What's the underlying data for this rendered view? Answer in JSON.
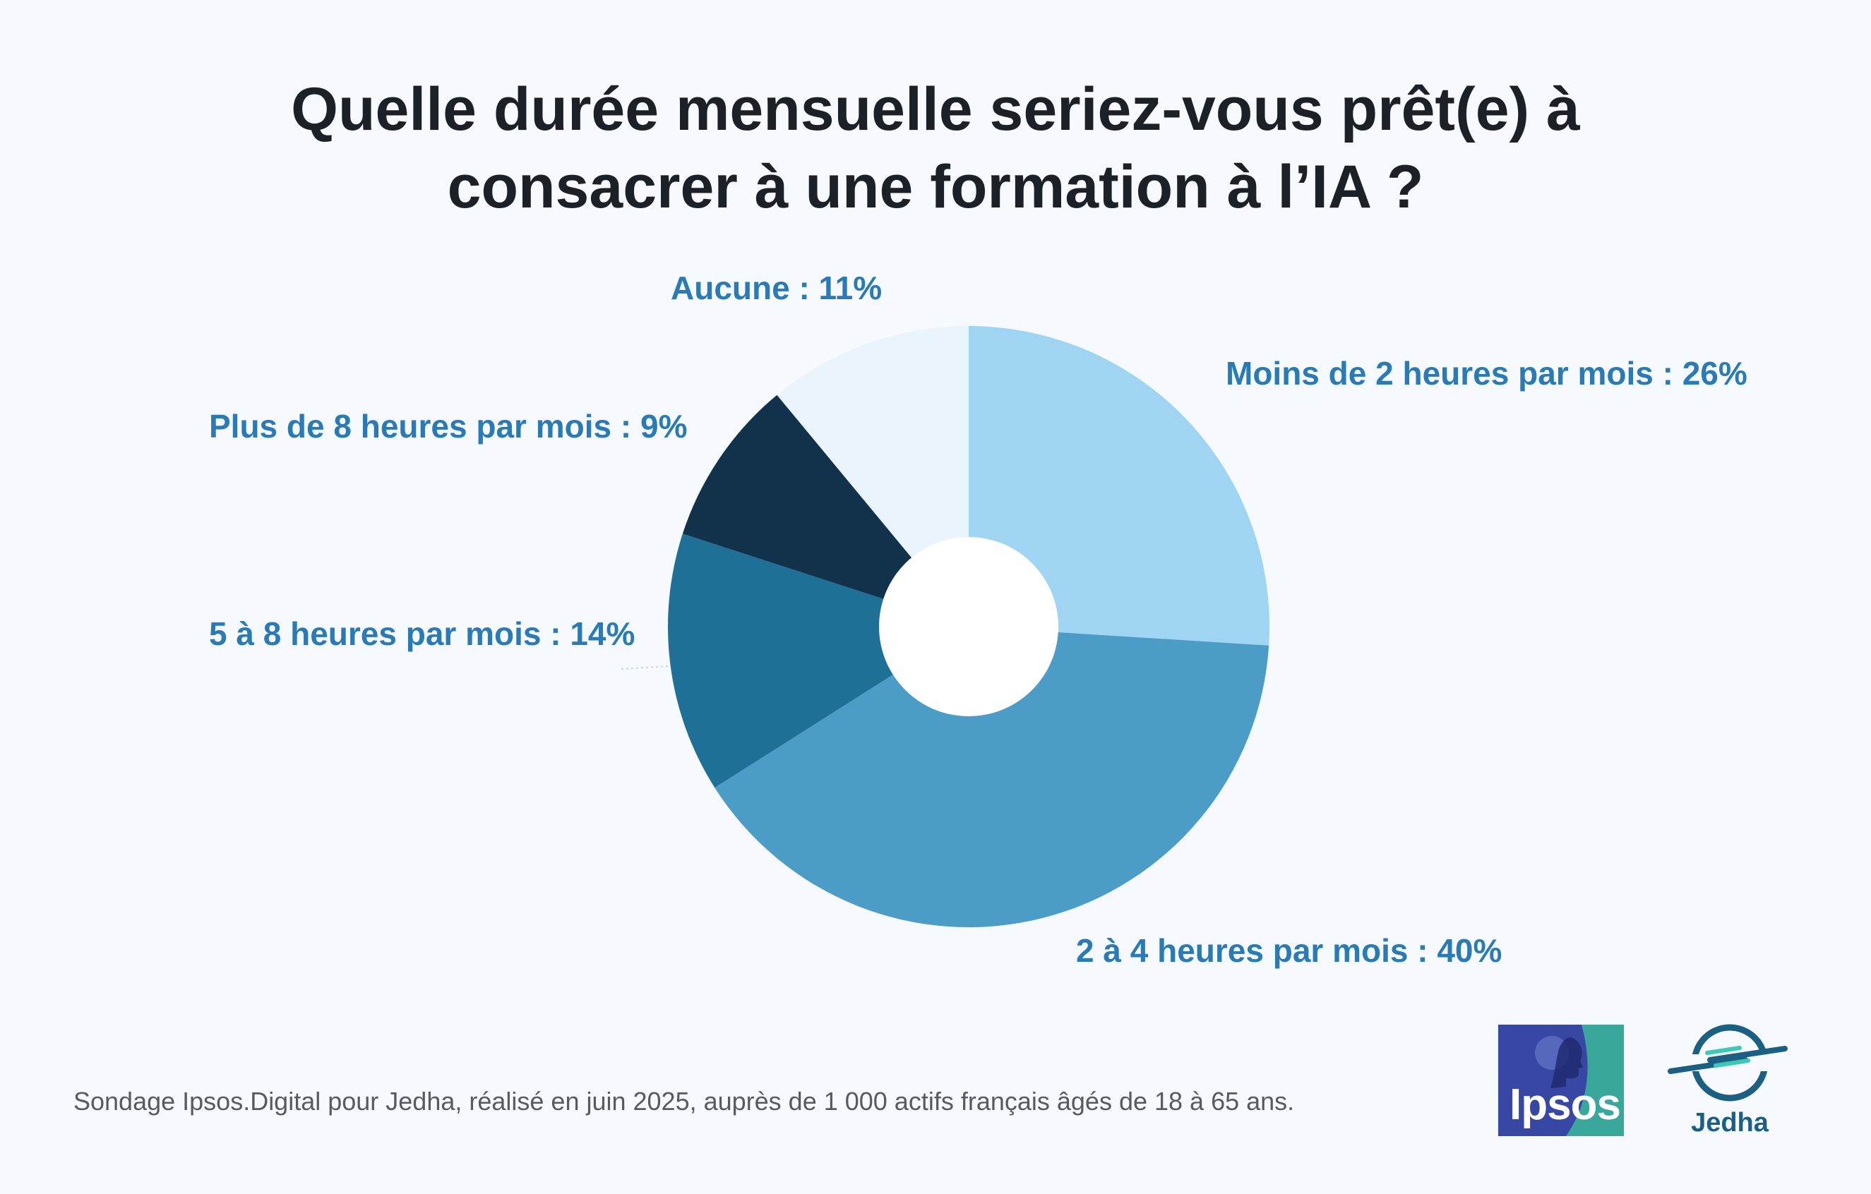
{
  "title_lines": [
    "Quelle durée mensuelle seriez-vous prêt(e) à",
    "consacrer à une formation à l’IA ?"
  ],
  "chart_data": {
    "type": "pie",
    "donut": true,
    "title": "Quelle durée mensuelle seriez-vous prêt(e) à consacrer à une formation à l’IA ?",
    "categories": [
      "Moins de 2 heures par mois",
      "2 à 4 heures par mois",
      "5 à 8 heures par mois",
      "Plus de 8 heures par mois",
      "Aucune"
    ],
    "values": [
      26,
      40,
      14,
      9,
      11
    ],
    "unit": "%",
    "colors": [
      "#a0d4f3",
      "#4c9cc8",
      "#1e7097",
      "#11324a",
      "#eaf4fc"
    ],
    "labels": [
      "Moins de 2 heures par mois : 26%",
      "2 à 4 heures par mois : 40%",
      "5 à 8 heures par mois : 14%",
      "Plus de 8 heures par mois : 9%",
      "Aucune : 11%"
    ]
  },
  "source": "Sondage Ipsos.Digital pour Jedha, réalisé en juin 2025, auprès de 1 000 actifs français âgés de 18 à 65 ans.",
  "logos": {
    "ipsos": "Ipsos",
    "jedha": "Jedha"
  }
}
